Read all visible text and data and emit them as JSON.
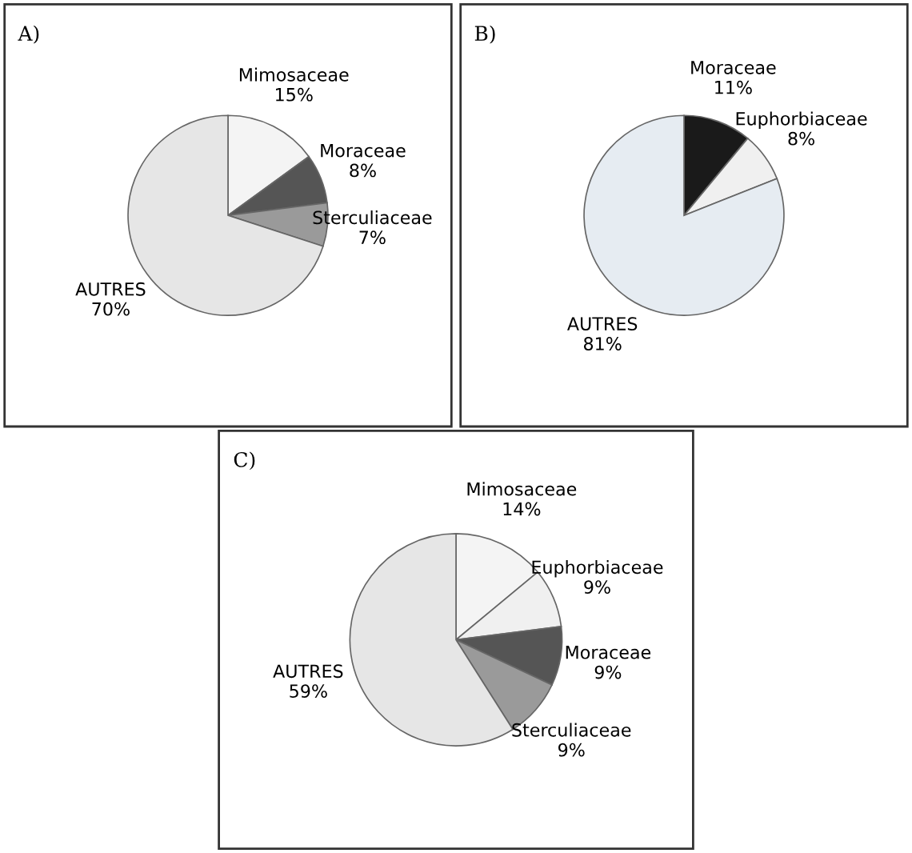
{
  "chart_data": [
    {
      "type": "pie",
      "title": "A)",
      "categories": [
        "Mimosaceae",
        "Moraceae",
        "Sterculiaceae",
        "AUTRES"
      ],
      "values": [
        15,
        8,
        7,
        70
      ],
      "value_labels": [
        "15%",
        "8%",
        "7%",
        "70%"
      ],
      "colors": [
        "#f4f4f4",
        "#555555",
        "#9a9a9a",
        "#e6e6e6"
      ]
    },
    {
      "type": "pie",
      "title": "B)",
      "categories": [
        "Moraceae",
        "Euphorbiaceae",
        "AUTRES"
      ],
      "values": [
        11,
        8,
        81
      ],
      "value_labels": [
        "11%",
        "8%",
        "81%"
      ],
      "colors": [
        "#1a1a1a",
        "#f0f0f0",
        "#e6ecf2"
      ]
    },
    {
      "type": "pie",
      "title": "C)",
      "categories": [
        "Mimosaceae",
        "Euphorbiaceae",
        "Moraceae",
        "Sterculiaceae",
        "AUTRES"
      ],
      "values": [
        14,
        9,
        9,
        9,
        59
      ],
      "value_labels": [
        "14%",
        "9%",
        "9%",
        "9%",
        "59%"
      ],
      "colors": [
        "#f4f4f4",
        "#f0f0f0",
        "#555555",
        "#9a9a9a",
        "#e6e6e6"
      ]
    }
  ]
}
